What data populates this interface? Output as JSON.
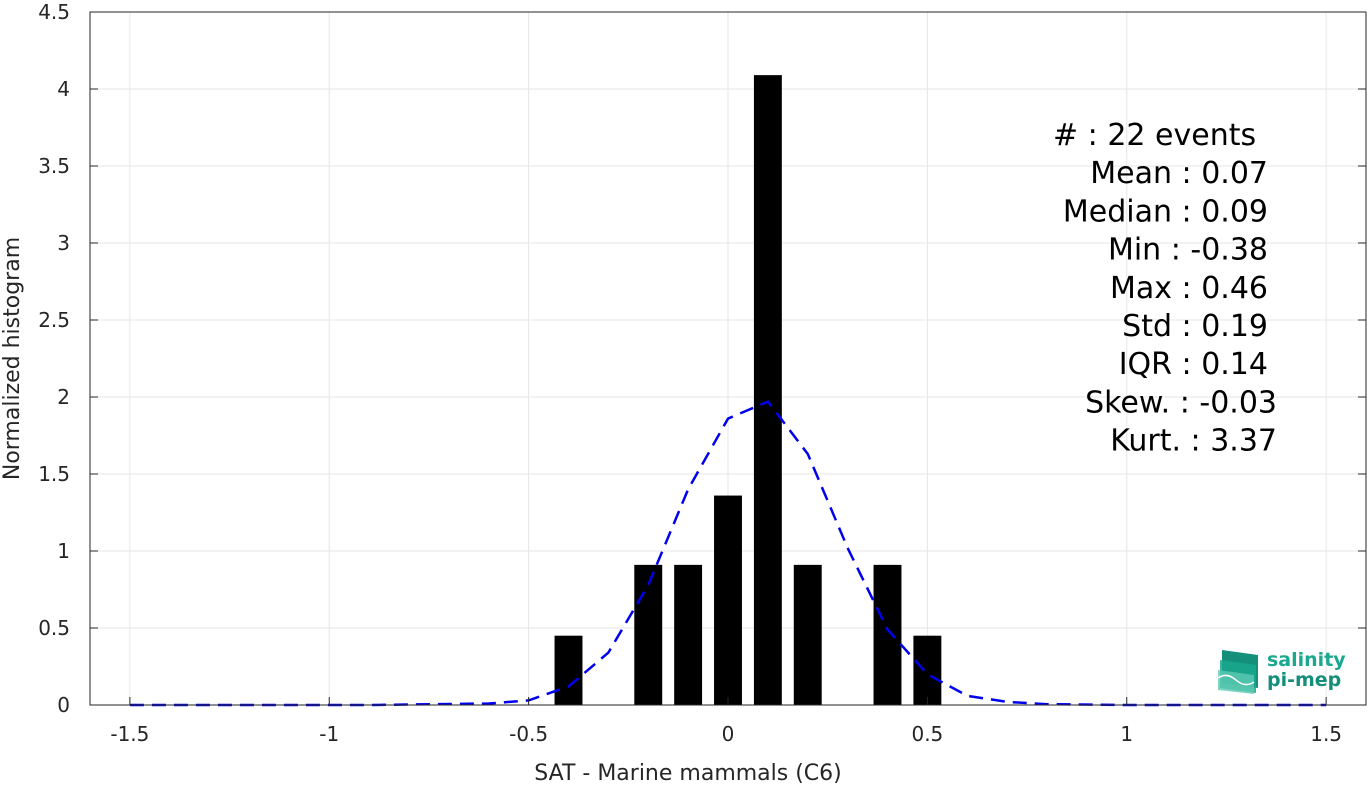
{
  "chart_data": {
    "type": "bar",
    "xlabel": "SAT - Marine mammals (C6)",
    "ylabel": "Normalized histogram",
    "xlim": [
      -1.6,
      1.6
    ],
    "ylim": [
      0,
      4.5
    ],
    "xticks": [
      -1.5,
      -1,
      -0.5,
      0,
      0.5,
      1,
      1.5
    ],
    "xtick_labels": [
      "-1.5",
      "-1",
      "-0.5",
      "0",
      "0.5",
      "1",
      "1.5"
    ],
    "yticks": [
      0,
      0.5,
      1,
      1.5,
      2,
      2.5,
      3,
      3.5,
      4,
      4.5
    ],
    "ytick_labels": [
      "0",
      "0.5",
      "1",
      "1.5",
      "2",
      "2.5",
      "3",
      "3.5",
      "4",
      "4.5"
    ],
    "grid": true,
    "bar_color": "#000000",
    "bin_width": 0.1,
    "bars": [
      {
        "x": -0.4,
        "value": 0.45
      },
      {
        "x": -0.2,
        "value": 0.91
      },
      {
        "x": -0.1,
        "value": 0.91
      },
      {
        "x": 0.0,
        "value": 1.36
      },
      {
        "x": 0.1,
        "value": 4.09
      },
      {
        "x": 0.2,
        "value": 0.91
      },
      {
        "x": 0.4,
        "value": 0.91
      },
      {
        "x": 0.5,
        "value": 0.45
      }
    ],
    "fit_curve": {
      "color": "#0000ee",
      "style": "dashed",
      "x": [
        -1.5,
        -1.2,
        -0.9,
        -0.6,
        -0.5,
        -0.4,
        -0.3,
        -0.2,
        -0.1,
        0.0,
        0.1,
        0.2,
        0.3,
        0.4,
        0.5,
        0.6,
        0.7,
        0.8,
        1.0,
        1.2,
        1.5
      ],
      "y": [
        0,
        0,
        0,
        0.01,
        0.03,
        0.12,
        0.34,
        0.78,
        1.4,
        1.86,
        1.97,
        1.63,
        1.02,
        0.49,
        0.2,
        0.06,
        0.02,
        0.005,
        0,
        0,
        0
      ]
    },
    "stats_lines": [
      "#  : 22 events",
      "Mean : 0.07",
      "Median : 0.09",
      "Min : -0.38",
      "Max : 0.46",
      "Std : 0.19",
      "IQR : 0.14",
      "Skew. : -0.03",
      "Kurt. : 3.37"
    ]
  },
  "logo": {
    "line1": "salinity",
    "line2": "pi-mep",
    "color": "#1aa88e"
  }
}
